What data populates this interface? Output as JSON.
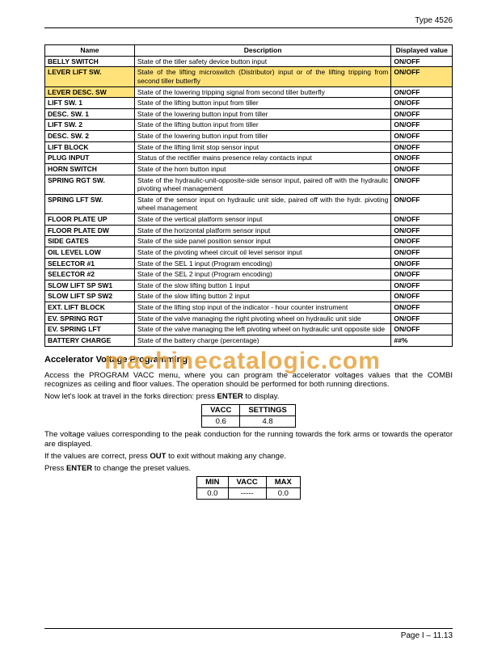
{
  "header": {
    "type": "Type 4526"
  },
  "table": {
    "columns": [
      "Name",
      "Description",
      "Displayed value"
    ],
    "rows": [
      {
        "name": "BELLY SWITCH",
        "desc": "State of the tiller safety device button input",
        "val": "ON/OFF",
        "hl": false
      },
      {
        "name": "LEVER LIFT SW.",
        "desc": "State of the lifting microswitch (Distributor) input or of the lifting tripping from second tiller butterfly",
        "val": "ON/OFF",
        "hl": true
      },
      {
        "name": "LEVER DESC. SW",
        "desc": "State of the lowering tripping signal from second tiller butterfly",
        "val": "ON/OFF",
        "hl": "name"
      },
      {
        "name": "LIFT SW. 1",
        "desc": "State of the lifting button input from tiller",
        "val": "ON/OFF",
        "hl": false
      },
      {
        "name": "DESC. SW. 1",
        "desc": "State of the lowering button input from tiller",
        "val": "ON/OFF",
        "hl": false
      },
      {
        "name": "LIFT SW. 2",
        "desc": "State of the lifting button input from tiller",
        "val": "ON/OFF",
        "hl": false
      },
      {
        "name": "DESC. SW. 2",
        "desc": "State of the lowering button input from tiller",
        "val": "ON/OFF",
        "hl": false
      },
      {
        "name": "LIFT BLOCK",
        "desc": "State of the lifting limit stop sensor input",
        "val": "ON/OFF",
        "hl": false
      },
      {
        "name": "PLUG INPUT",
        "desc": "Status of the rectifier mains presence relay contacts input",
        "val": "ON/OFF",
        "hl": false
      },
      {
        "name": "HORN SWITCH",
        "desc": "State of the horn button input",
        "val": "ON/OFF",
        "hl": false
      },
      {
        "name": "SPRING RGT SW.",
        "desc": "State of the hydraulic-unit-opposite-side sensor input, paired off with the hydraulic pivoting wheel management",
        "val": "ON/OFF",
        "hl": false
      },
      {
        "name": "SPRING LFT SW.",
        "desc": "State of the sensor input on hydraulic unit side, paired off with the hydr. pivoting wheel management",
        "val": "ON/OFF",
        "hl": false
      },
      {
        "name": "FLOOR PLATE UP",
        "desc": "State of the vertical platform sensor input",
        "val": "ON/OFF",
        "hl": false
      },
      {
        "name": "FLOOR PLATE DW",
        "desc": "State of the horizontal platform sensor input",
        "val": "ON/OFF",
        "hl": false
      },
      {
        "name": "SIDE GATES",
        "desc": "State of the side panel position sensor input",
        "val": "ON/OFF",
        "hl": false
      },
      {
        "name": "OIL LEVEL LOW",
        "desc": "State of the pivoting wheel circuit oil level sensor input",
        "val": "ON/OFF",
        "hl": false
      },
      {
        "name": "SELECTOR #1",
        "desc": "State of the SEL 1 input (Program encoding)",
        "val": "ON/OFF",
        "hl": false
      },
      {
        "name": "SELECTOR #2",
        "desc": "State of the SEL 2 input (Program encoding)",
        "val": "ON/OFF",
        "hl": false
      },
      {
        "name": "SLOW LIFT SP SW1",
        "desc": "State of the slow lifting button 1 input",
        "val": "ON/OFF",
        "hl": false
      },
      {
        "name": "SLOW LIFT SP SW2",
        "desc": "State of the slow lifting button 2 input",
        "val": "ON/OFF",
        "hl": false
      },
      {
        "name": "EXT. LIFT BLOCK",
        "desc": "State of the lifting stop input of the indicator - hour counter instrument",
        "val": "ON/OFF",
        "hl": false
      },
      {
        "name": "EV. SPRING RGT",
        "desc": "State of the valve managing the right pivoting wheel on hydraulic unit side",
        "val": "ON/OFF",
        "hl": false
      },
      {
        "name": "EV. SPRING LFT",
        "desc": "State of the valve managing the left pivoting wheel on hydraulic unit opposite side",
        "val": "ON/OFF",
        "hl": false
      },
      {
        "name": "BATTERY CHARGE",
        "desc": "State of the battery charge (percentage)",
        "val": "##%",
        "hl": false
      }
    ]
  },
  "section": {
    "heading": "Accelerator Voltage Programming",
    "p1": "Access the PROGRAM VACC menu, where you can program the accelerator voltages values that the COMBI recognizes as ceiling and floor values. The operation should be performed for both running directions.",
    "p2_a": "Now let's look at travel in the forks direction: press ",
    "p2_b": "ENTER",
    "p2_c": " to display.",
    "table1": {
      "h1": "VACC",
      "h2": "SETTINGS",
      "v1": "0.6",
      "v2": "4.8"
    },
    "p3": "The voltage values corresponding to the peak conduction for the running towards the fork arms or towards the operator are displayed.",
    "p4_a": "If the values are correct, press ",
    "p4_b": "OUT",
    "p4_c": " to exit without making any change.",
    "p5_a": "Press ",
    "p5_b": "ENTER",
    "p5_c": " to change the preset values.",
    "table2": {
      "h1": "MIN",
      "h2": "VACC",
      "h3": "MAX",
      "v1": "0.0",
      "v2": "-----",
      "v3": "0.0"
    }
  },
  "watermark": "machinecatalogic.com",
  "footer": "Page I – 11.13"
}
